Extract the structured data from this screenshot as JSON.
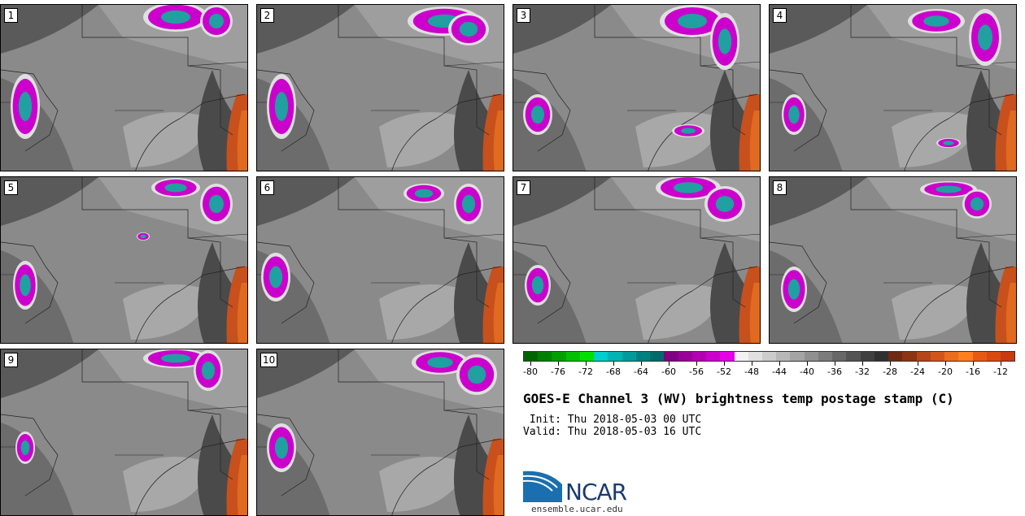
{
  "panels": [
    {
      "label": "1"
    },
    {
      "label": "2"
    },
    {
      "label": "3"
    },
    {
      "label": "4"
    },
    {
      "label": "5"
    },
    {
      "label": "6"
    },
    {
      "label": "7"
    },
    {
      "label": "8"
    },
    {
      "label": "9"
    },
    {
      "label": "10"
    }
  ],
  "colorbar": {
    "ticks": [
      "-80",
      "-76",
      "-72",
      "-68",
      "-64",
      "-60",
      "-56",
      "-52",
      "-48",
      "-44",
      "-40",
      "-36",
      "-32",
      "-28",
      "-24",
      "-20",
      "-16",
      "-12"
    ],
    "colors": [
      "#006400",
      "#008000",
      "#00a000",
      "#00c000",
      "#00e000",
      "#00cdcd",
      "#00b4b4",
      "#009a9a",
      "#008080",
      "#006a6a",
      "#800080",
      "#990099",
      "#b200b2",
      "#cc00cc",
      "#e600e6",
      "#f2f2f2",
      "#e0e0e0",
      "#cccccc",
      "#b8b8b8",
      "#a4a4a4",
      "#909090",
      "#7c7c7c",
      "#686868",
      "#545454",
      "#404040",
      "#303030",
      "#6e2a12",
      "#8b3512",
      "#b4461a",
      "#d2561c",
      "#eb6d1e",
      "#ff7f1e",
      "#e85a14",
      "#d84a10",
      "#c83a10"
    ]
  },
  "title": "GOES-E Channel 3 (WV) brightness temp postage stamp (C)",
  "init": " Init: Thu 2018-05-03 00 UTC",
  "valid": "Valid: Thu 2018-05-03 16 UTC",
  "logo": {
    "text": "NCAR",
    "url": "ensemble.ucar.edu",
    "color": "#1a3a6e"
  }
}
